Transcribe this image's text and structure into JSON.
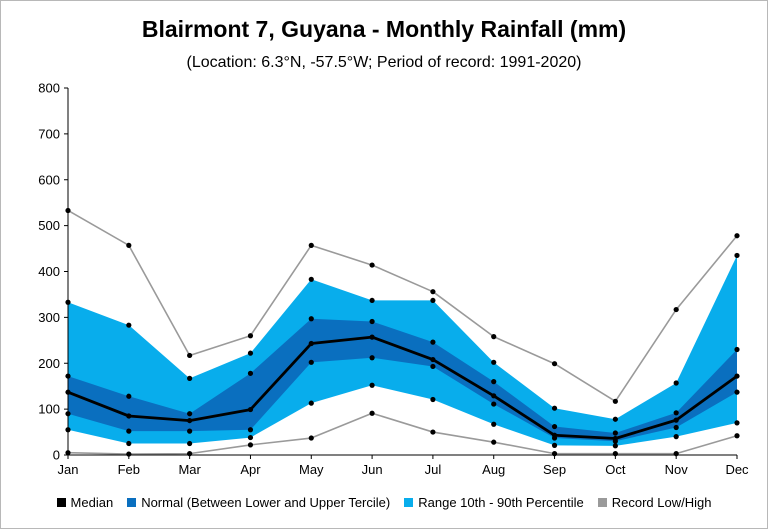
{
  "chart_data": {
    "type": "area",
    "title": "Blairmont 7, Guyana - Monthly Rainfall (mm)",
    "subtitle": "(Location: 6.3°N, -57.5°W; Period of record: 1991-2020)",
    "categories": [
      "Jan",
      "Feb",
      "Mar",
      "Apr",
      "May",
      "Jun",
      "Jul",
      "Aug",
      "Sep",
      "Oct",
      "Nov",
      "Dec"
    ],
    "ylim": [
      0,
      800
    ],
    "yticks": [
      0,
      100,
      200,
      300,
      400,
      500,
      600,
      700,
      800
    ],
    "grid": false,
    "legend_position": "bottom",
    "series": [
      {
        "name": "Record High",
        "values": [
          533,
          457,
          217,
          260,
          457,
          414,
          356,
          258,
          199,
          117,
          317,
          478
        ]
      },
      {
        "name": "90th Percentile",
        "values": [
          333,
          283,
          167,
          222,
          383,
          337,
          337,
          202,
          102,
          78,
          157,
          435
        ]
      },
      {
        "name": "Upper Tercile",
        "values": [
          172,
          128,
          90,
          178,
          297,
          291,
          246,
          160,
          62,
          48,
          92,
          230
        ]
      },
      {
        "name": "Median",
        "values": [
          137,
          85,
          75,
          99,
          243,
          257,
          208,
          129,
          43,
          36,
          76,
          172
        ]
      },
      {
        "name": "Lower Tercile",
        "values": [
          90,
          52,
          52,
          55,
          202,
          212,
          193,
          111,
          37,
          30,
          60,
          137
        ]
      },
      {
        "name": "10th Percentile",
        "values": [
          55,
          25,
          25,
          38,
          113,
          152,
          121,
          67,
          21,
          20,
          40,
          70
        ]
      },
      {
        "name": "Record Low",
        "values": [
          5,
          2,
          3,
          22,
          37,
          91,
          50,
          28,
          3,
          3,
          3,
          42
        ]
      }
    ],
    "legend": [
      {
        "label": "Median",
        "color": "#000000"
      },
      {
        "label": "Normal (Between Lower and Upper Tercile)",
        "color": "#0a6fbf"
      },
      {
        "label": "Range 10th - 90th Percentile",
        "color": "#08adec"
      },
      {
        "label": "Record Low/High",
        "color": "#9a9a9a"
      }
    ],
    "colors": {
      "range": "#08adec",
      "normal": "#0a6fbf",
      "median": "#000000",
      "record": "#9a9a9a"
    }
  }
}
